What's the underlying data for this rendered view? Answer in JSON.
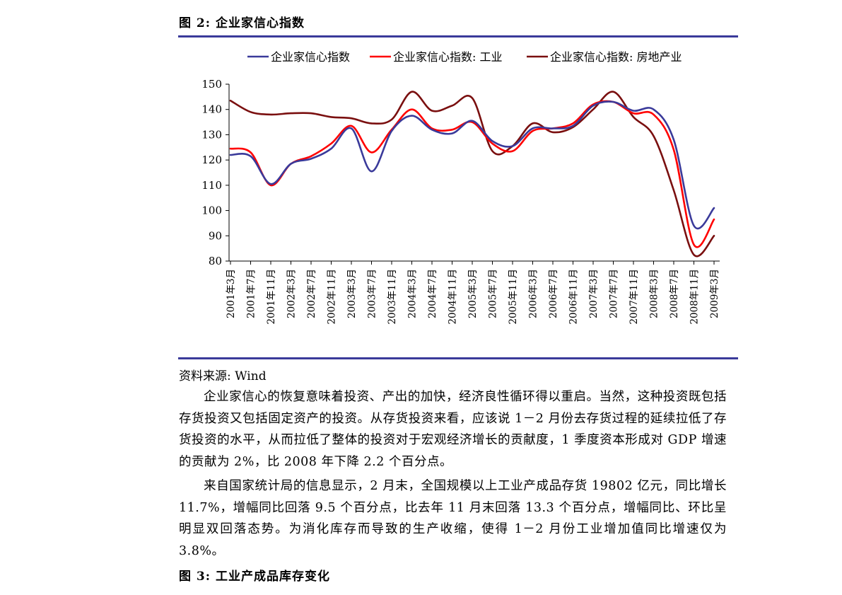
{
  "figure_top": {
    "title": "图  2: 企业家信心指数"
  },
  "chart_data": {
    "type": "line",
    "title": "",
    "xlabel": "",
    "ylabel": "",
    "ylim": [
      80,
      150
    ],
    "yticks": [
      80,
      90,
      100,
      110,
      120,
      130,
      140,
      150
    ],
    "legend_position": "top",
    "grid": false,
    "x_tick_labels": [
      "2001年3月",
      "2001年7月",
      "2001年11月",
      "2002年3月",
      "2002年7月",
      "2002年11月",
      "2003年3月",
      "2003年7月",
      "2003年11月",
      "2004年3月",
      "2004年7月",
      "2004年11月",
      "2005年3月",
      "2005年7月",
      "2005年11月",
      "2006年3月",
      "2006年7月",
      "2006年11月",
      "2007年3月",
      "2007年7月",
      "2007年11月",
      "2008年3月",
      "2008年7月",
      "2008年11月",
      "2009年3月"
    ],
    "series": [
      {
        "name": "企业家信心指数",
        "color": "#3a3a9a",
        "values": [
          122,
          121.5,
          110.5,
          118.5,
          120.5,
          124.5,
          132.5,
          115.5,
          131.5,
          137.5,
          132,
          130.5,
          135.5,
          127.5,
          125.5,
          132.5,
          132.5,
          133.5,
          141.5,
          143,
          139.5,
          140,
          128,
          94,
          101
        ]
      },
      {
        "name": "企业家信心指数: 工业",
        "color": "#ff0000",
        "values": [
          124.5,
          123,
          110,
          118.5,
          121.5,
          126.5,
          133.5,
          123,
          132,
          140,
          132.5,
          132,
          135,
          126.5,
          123.5,
          131.5,
          132.5,
          134.5,
          142,
          143,
          138.5,
          138,
          124,
          86.5,
          96.5
        ]
      },
      {
        "name": "企业家信心指数: 房地产业",
        "color": "#7a0f0f",
        "values": [
          143.5,
          139,
          138,
          138.5,
          138.5,
          137,
          136.5,
          134.5,
          136,
          147,
          139.5,
          141.5,
          144.5,
          123.5,
          125.5,
          134.5,
          131,
          133,
          140,
          147,
          137,
          129.5,
          108,
          82.5,
          90
        ]
      }
    ]
  },
  "source": "资料来源: Wind",
  "paragraphs": [
    "企业家信心的恢复意味着投资、产出的加快，经济良性循环得以重启。当然，这种投资既包括存货投资又包括固定资产的投资。从存货投资来看，应该说 1－2 月份去存货过程的延续拉低了存货投资的水平，从而拉低了整体的投资对于宏观经济增长的贡献度，1 季度资本形成对 GDP 增速的贡献为 2%，比 2008 年下降 2.2 个百分点。",
    "来自国家统计局的信息显示，2 月末，全国规模以上工业产成品存货 19802 亿元，同比增长 11.7%，增幅同比回落 9.5 个百分点，比去年 11 月末回落 13.3 个百分点，增幅同比、环比呈明显双回落态势。为消化库存而导致的生产收缩，使得 1－2 月份工业增加值同比增速仅为 3.8%。"
  ],
  "figure_bottom": {
    "title": "图  3:  工业产成品库存变化"
  }
}
